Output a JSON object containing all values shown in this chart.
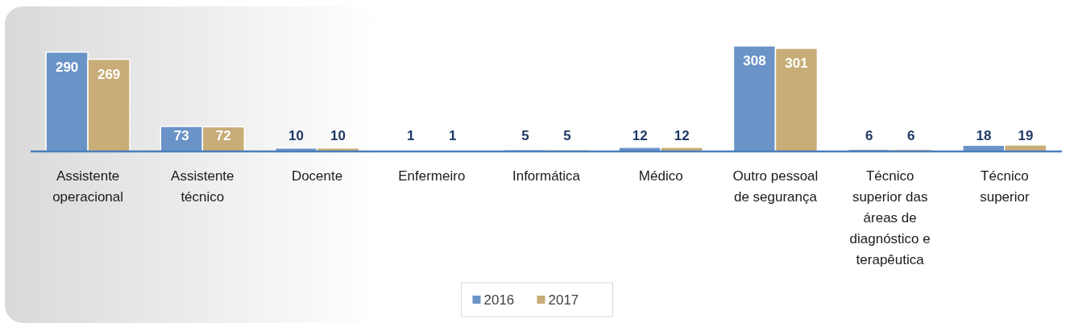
{
  "chart_data": {
    "type": "bar",
    "categories": [
      "Assistente operacional",
      "Assistente técnico",
      "Docente",
      "Enfermeiro",
      "Informática",
      "Médico",
      "Outro pessoal de segurança",
      "Técnico superior das áreas de diagnóstico e terapêutica",
      "Técnico superior"
    ],
    "series": [
      {
        "name": "2016",
        "color": "#6a93c7",
        "values": [
          290,
          73,
          10,
          1,
          5,
          12,
          308,
          6,
          18
        ]
      },
      {
        "name": "2017",
        "color": "#c8ad78",
        "values": [
          269,
          72,
          10,
          1,
          5,
          12,
          301,
          6,
          19
        ]
      }
    ],
    "data_labels": true,
    "legend": "bottom"
  }
}
